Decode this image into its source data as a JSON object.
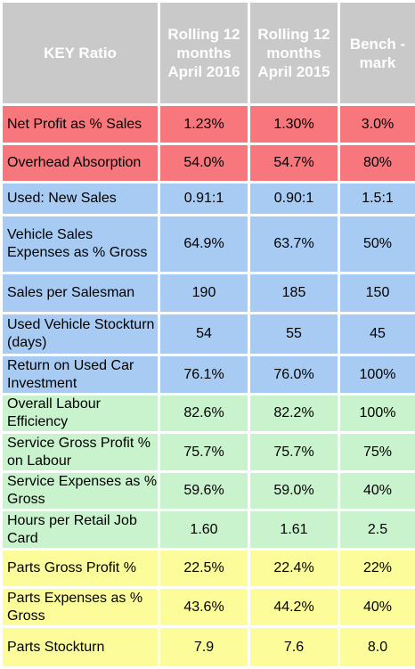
{
  "header": {
    "key_ratio": "KEY Ratio",
    "col_2016": "Rolling 12 months April 2016",
    "col_2015": "Rolling 12 months April 2015",
    "col_benchmark": "Bench -mark"
  },
  "rows": [
    {
      "label": "Net Profit as % Sales",
      "v2016": "1.23%",
      "v2015": "1.30%",
      "bench": "3.0%"
    },
    {
      "label": "Overhead Absorption",
      "v2016": "54.0%",
      "v2015": "54.7%",
      "bench": "80%"
    },
    {
      "label": "Used: New Sales",
      "v2016": "0.91:1",
      "v2015": "0.90:1",
      "bench": "1.5:1"
    },
    {
      "label": "Vehicle Sales Expenses as % Gross",
      "v2016": "64.9%",
      "v2015": "63.7%",
      "bench": "50%"
    },
    {
      "label": "Sales per Salesman",
      "v2016": "190",
      "v2015": "185",
      "bench": "150"
    },
    {
      "label": "Used Vehicle Stockturn (days)",
      "v2016": "54",
      "v2015": "55",
      "bench": "45"
    },
    {
      "label": "Return on Used Car Investment",
      "v2016": "76.1%",
      "v2015": "76.0%",
      "bench": "100%"
    },
    {
      "label": "Overall Labour Efficiency",
      "v2016": "82.6%",
      "v2015": "82.2%",
      "bench": "100%"
    },
    {
      "label": "Service Gross Profit % on Labour",
      "v2016": "75.7%",
      "v2015": "75.7%",
      "bench": "75%"
    },
    {
      "label": "Service Expenses as % Gross",
      "v2016": "59.6%",
      "v2015": "59.0%",
      "bench": "40%"
    },
    {
      "label": "Hours per Retail Job Card",
      "v2016": "1.60",
      "v2015": "1.61",
      "bench": "2.5"
    },
    {
      "label": "Parts Gross Profit %",
      "v2016": "22.5%",
      "v2015": "22.4%",
      "bench": "22%"
    },
    {
      "label": "Parts Expenses as % Gross",
      "v2016": "43.6%",
      "v2015": "44.2%",
      "bench": "40%"
    },
    {
      "label": "Parts Stockturn",
      "v2016": "7.9",
      "v2015": "7.6",
      "bench": "8.0"
    }
  ],
  "colors": {
    "header": "#c9c9c9",
    "profit": "#f7777c",
    "sales": "#a7cbf2",
    "service": "#c9f3cd",
    "parts": "#fdfc9b"
  }
}
